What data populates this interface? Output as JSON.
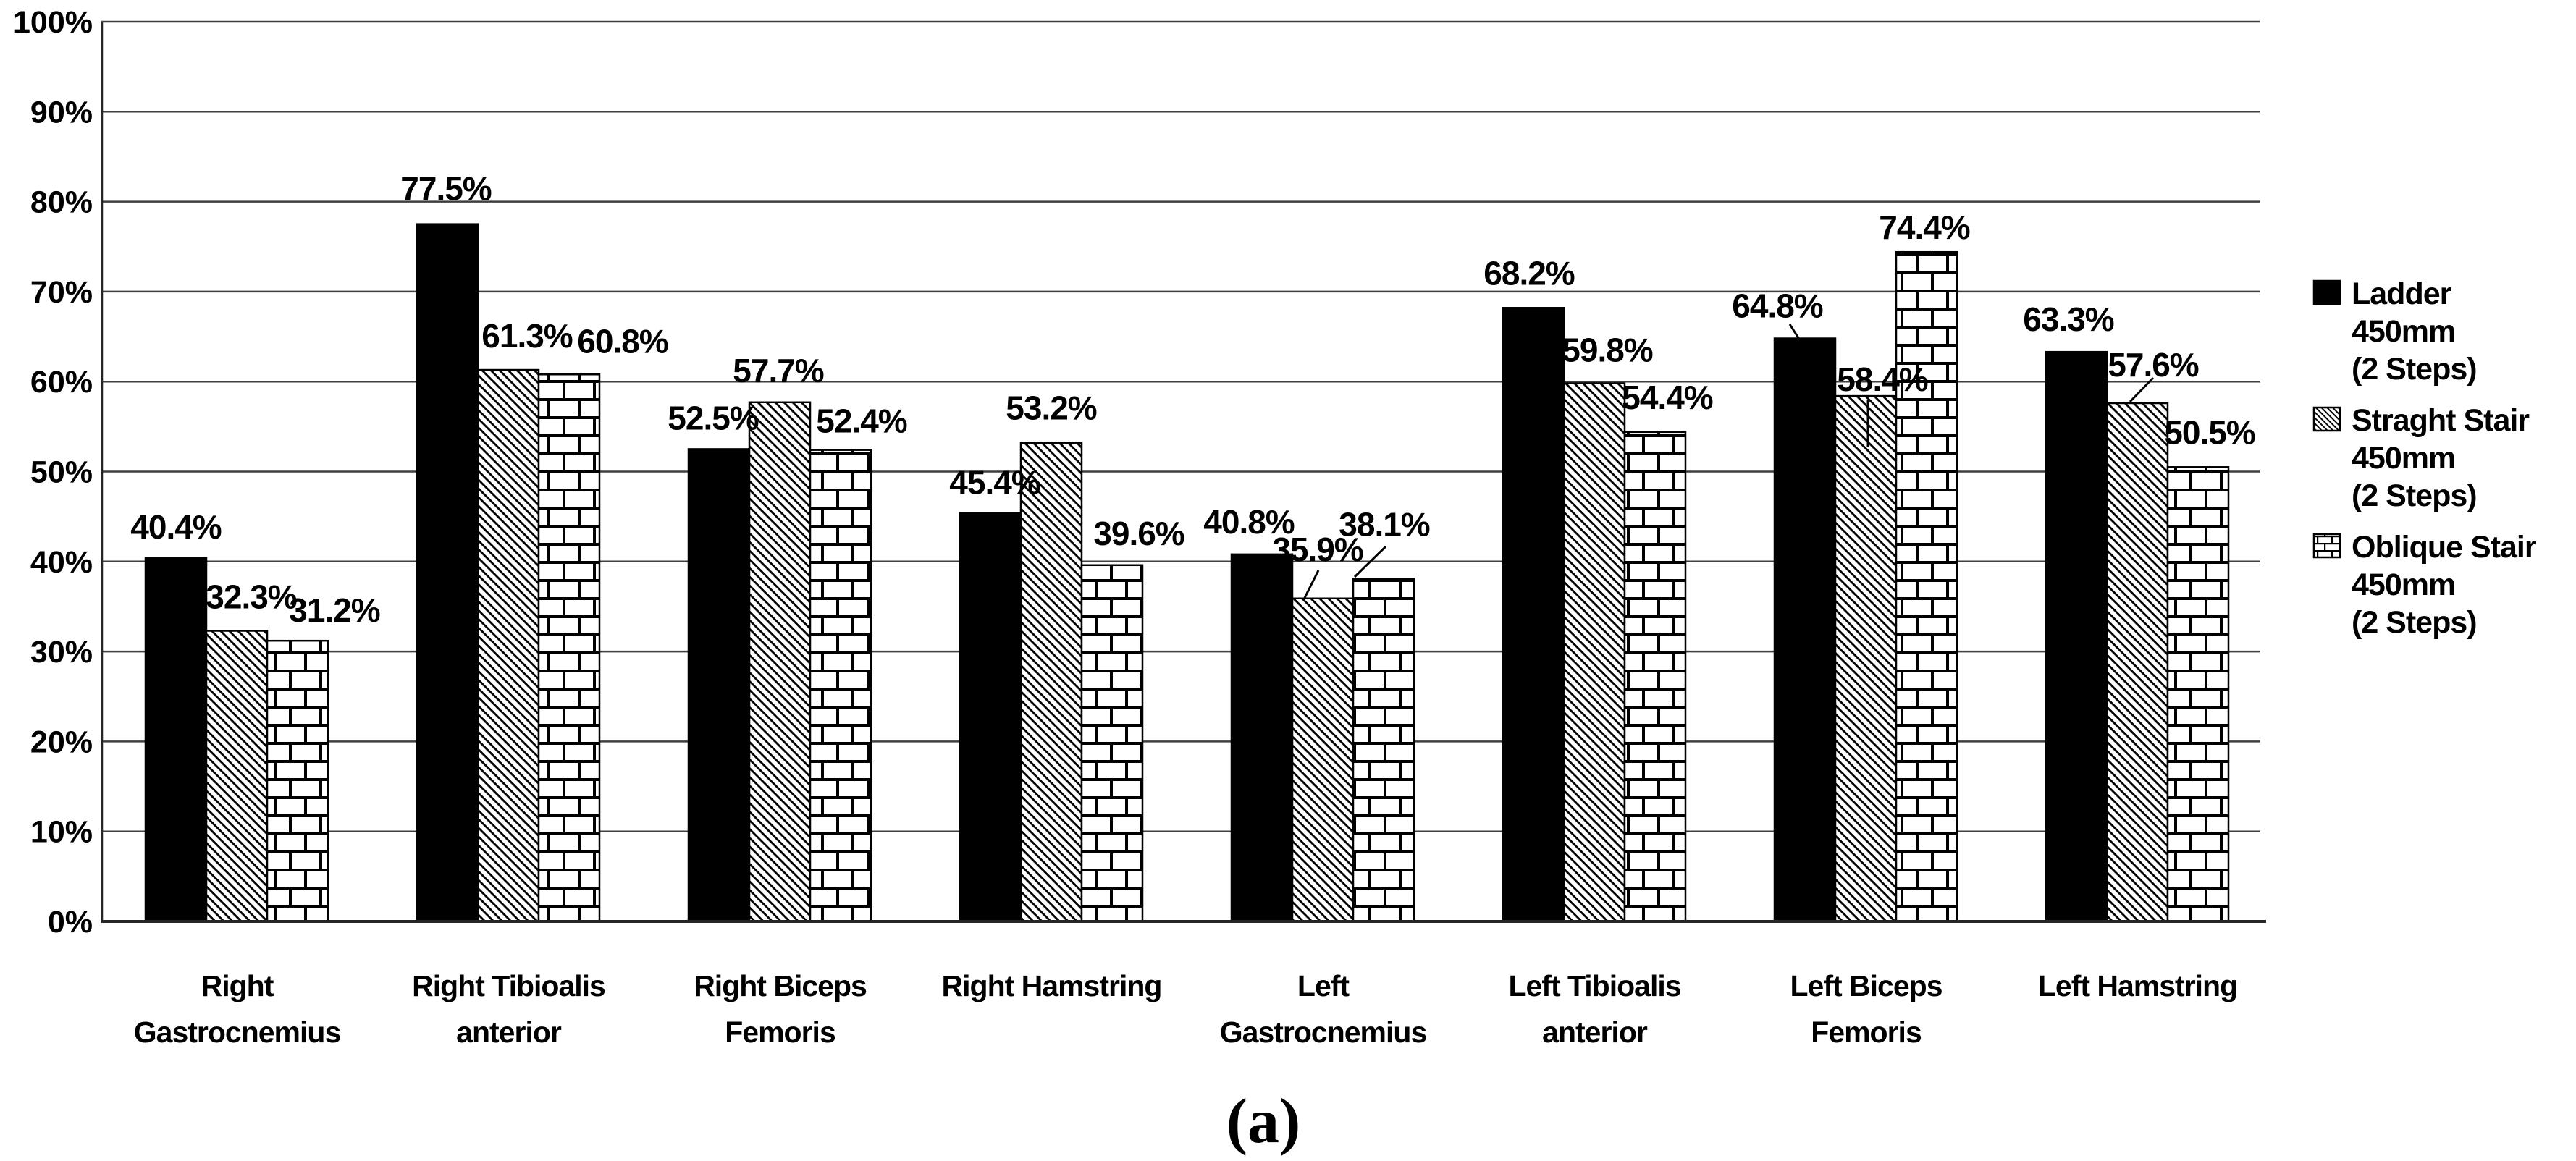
{
  "figure": {
    "caption": "(a)"
  },
  "colors": {
    "background": "#ffffff",
    "bar_fill": "#000000",
    "gridline": "#3f3f3f",
    "axis": "#262626",
    "text": "#000000"
  },
  "chart_data": {
    "type": "bar",
    "title": "",
    "xlabel": "",
    "ylabel": "",
    "grid": true,
    "legend_position": "right",
    "y_axis": {
      "min": 0,
      "max": 100,
      "step": 10,
      "tick_labels": [
        "0%",
        "10%",
        "20%",
        "30%",
        "40%",
        "50%",
        "60%",
        "70%",
        "80%",
        "90%",
        "100%"
      ]
    },
    "categories": [
      "Right Gastrocnemius",
      "Right Tibioalis anterior",
      "Right Biceps Femoris",
      "Right Hamstring",
      "Left Gastrocnemius",
      "Left Tibioalis anterior",
      "Left Biceps Femoris",
      "Left Hamstring"
    ],
    "categories_lines": [
      [
        "Right",
        "Gastrocnemius"
      ],
      [
        "Right Tibioalis",
        "anterior"
      ],
      [
        "Right Biceps",
        "Femoris"
      ],
      [
        "Right Hamstring"
      ],
      [
        "Left",
        "Gastrocnemius"
      ],
      [
        "Left Tibioalis",
        "anterior"
      ],
      [
        "Left Biceps",
        "Femoris"
      ],
      [
        "Left Hamstring"
      ]
    ],
    "series": [
      {
        "name": "Ladder 450mm (2 Steps)",
        "name_lines": [
          "Ladder",
          "450mm",
          "(2 Steps)"
        ],
        "pattern": "solid",
        "values": [
          40.4,
          77.5,
          52.5,
          45.4,
          40.8,
          68.2,
          64.8,
          63.3
        ],
        "labels": [
          "40.4%",
          "77.5%",
          "52.5%",
          "45.4%",
          "40.8%",
          "68.2%",
          "64.8%",
          "63.3%"
        ]
      },
      {
        "name": "Straght Stair 450mm (2 Steps)",
        "name_lines": [
          "Straght Stair",
          "450mm",
          "(2 Steps)"
        ],
        "pattern": "diagonal-hatch",
        "values": [
          32.3,
          61.3,
          57.7,
          53.2,
          35.9,
          59.8,
          58.4,
          57.6
        ],
        "labels": [
          "32.3%",
          "61.3%",
          "57.7%",
          "53.2%",
          "35.9%",
          "59.8%",
          "58.4%",
          "57.6%"
        ]
      },
      {
        "name": "Oblique Stair 450mm (2 Steps)",
        "name_lines": [
          "Oblique Stair",
          "450mm",
          "(2 Steps)"
        ],
        "pattern": "brick",
        "values": [
          31.2,
          60.8,
          52.4,
          39.6,
          38.1,
          54.4,
          74.4,
          50.5
        ],
        "labels": [
          "31.2%",
          "60.8%",
          "52.4%",
          "39.6%",
          "38.1%",
          "54.4%",
          "74.4%",
          "50.5%"
        ]
      }
    ]
  }
}
